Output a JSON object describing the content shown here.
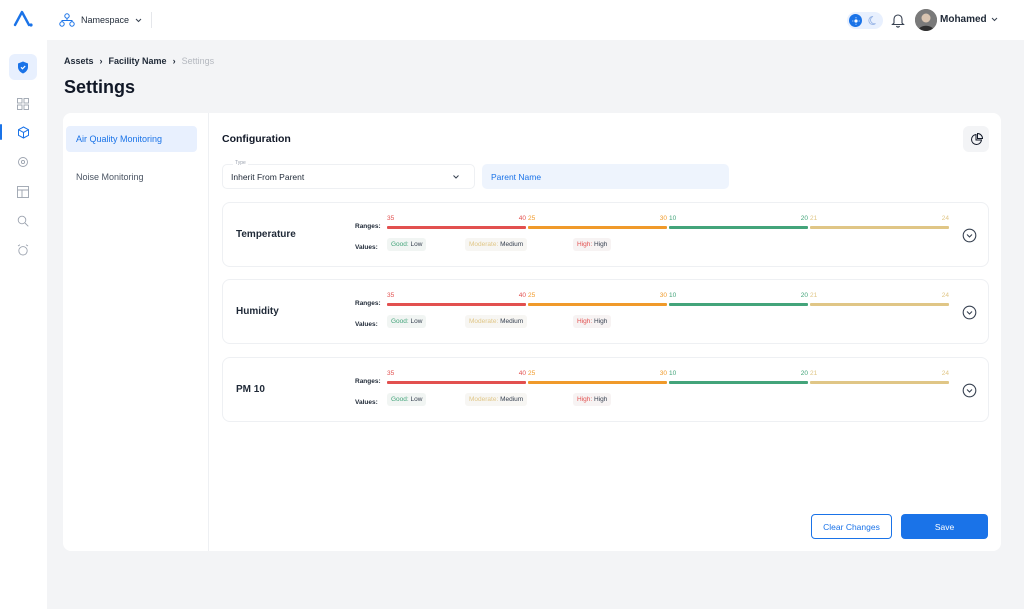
{
  "topbar": {
    "namespace_label": "Namespace",
    "user_name": "Mohamed"
  },
  "breadcrumb": {
    "items": [
      "Assets",
      "Facility Name"
    ],
    "current": "Settings"
  },
  "page_title": "Settings",
  "side_nav": {
    "items": [
      {
        "label": "Air Quality Monitoring",
        "active": true
      },
      {
        "label": "Noise Monitoring",
        "active": false
      }
    ]
  },
  "config": {
    "title": "Configuration",
    "type_label": "Type",
    "type_value": "Inherit From Parent",
    "parent_name_placeholder": "Parent Name"
  },
  "colors": {
    "primary": "#1a73e8",
    "range_red": "#e2504f",
    "range_orange": "#f09a2a",
    "range_green": "#43a47a",
    "range_yellow": "#e0c686"
  },
  "metrics": [
    {
      "name": "Temperature",
      "ranges_label": "Ranges:",
      "values_label": "Values:",
      "ranges": [
        {
          "start": "35",
          "end": "40"
        },
        {
          "start": "25",
          "end": "30"
        },
        {
          "start": "10",
          "end": "20"
        },
        {
          "start": "21",
          "end": "24"
        }
      ],
      "values": [
        {
          "key": "Good:",
          "value": "Low"
        },
        {
          "key": "Moderate:",
          "value": "Medium"
        },
        {
          "key": "High:",
          "value": "High"
        }
      ]
    },
    {
      "name": "Humidity",
      "ranges_label": "Ranges:",
      "values_label": "Values:",
      "ranges": [
        {
          "start": "35",
          "end": "40"
        },
        {
          "start": "25",
          "end": "30"
        },
        {
          "start": "10",
          "end": "20"
        },
        {
          "start": "21",
          "end": "24"
        }
      ],
      "values": [
        {
          "key": "Good:",
          "value": "Low"
        },
        {
          "key": "Moderate:",
          "value": "Medium"
        },
        {
          "key": "High:",
          "value": "High"
        }
      ]
    },
    {
      "name": "PM 10",
      "ranges_label": "Ranges:",
      "values_label": "Values:",
      "ranges": [
        {
          "start": "35",
          "end": "40"
        },
        {
          "start": "25",
          "end": "30"
        },
        {
          "start": "10",
          "end": "20"
        },
        {
          "start": "21",
          "end": "24"
        }
      ],
      "values": [
        {
          "key": "Good:",
          "value": "Low"
        },
        {
          "key": "Moderate:",
          "value": "Medium"
        },
        {
          "key": "High:",
          "value": "High"
        }
      ]
    }
  ],
  "actions": {
    "clear_label": "Clear Changes",
    "save_label": "Save"
  }
}
